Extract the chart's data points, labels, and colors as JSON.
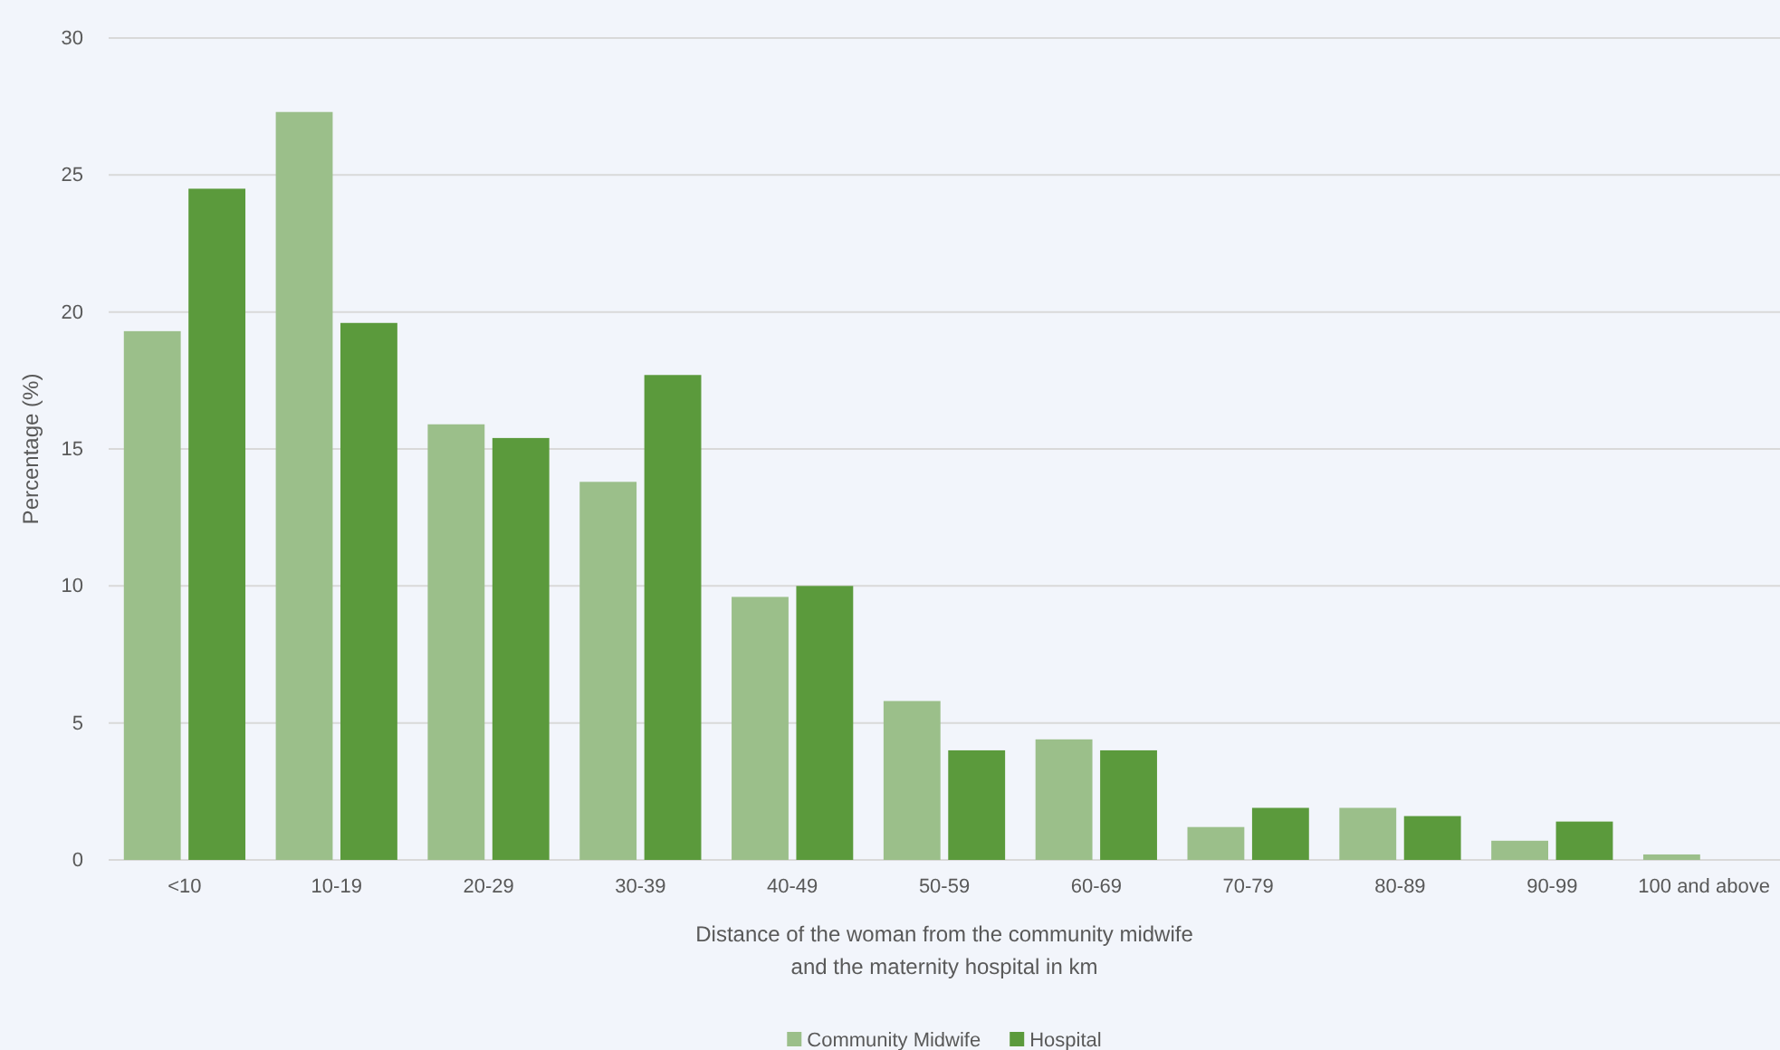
{
  "chart_data": {
    "type": "bar",
    "xlabel": "Distance of the woman from the community midwife\nand the maternity hospital in km",
    "ylabel": "Percentage (%)",
    "categories": [
      "<10",
      "10-19",
      "20-29",
      "30-39",
      "40-49",
      "50-59",
      "60-69",
      "70-79",
      "80-89",
      "90-99",
      "100 and above"
    ],
    "series": [
      {
        "name": "Community Midwife",
        "color": "#9bbf8a",
        "values": [
          19.3,
          27.3,
          15.9,
          13.8,
          9.6,
          5.8,
          4.4,
          1.2,
          1.9,
          0.7,
          0.2
        ]
      },
      {
        "name": "Hospital",
        "color": "#5b9a3c",
        "values": [
          24.5,
          19.6,
          15.4,
          17.7,
          10.0,
          4.0,
          4.0,
          1.9,
          1.6,
          1.4,
          0
        ]
      }
    ],
    "ylim": [
      0,
      30
    ],
    "yticks": [
      0,
      5,
      10,
      15,
      20,
      25,
      30
    ],
    "grid": "y",
    "legend": "bottom"
  }
}
